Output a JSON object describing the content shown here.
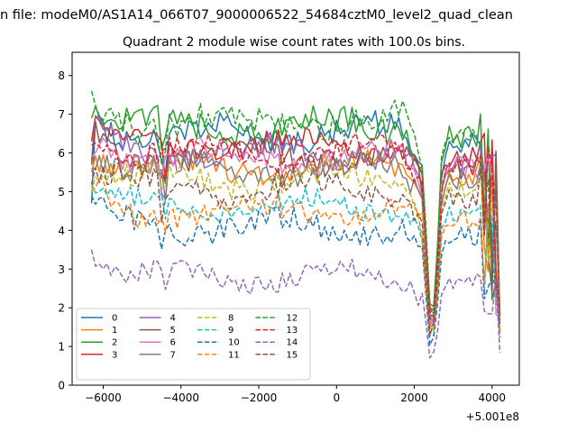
{
  "chart_data": {
    "type": "line",
    "suptitle": "n file: modeM0/AS1A14_066T07_9000006522_54684cztM0_level2_quad_clean",
    "title": "Quadrant 2 module wise count rates with 100.0s bins.",
    "xlabel": "",
    "ylabel": "",
    "offset_label": "+5.001e8",
    "xlim": [
      -6800,
      4700
    ],
    "ylim": [
      0,
      8.6
    ],
    "xticks": [
      -6000,
      -4000,
      -2000,
      0,
      2000,
      4000
    ],
    "xtick_labels": [
      "−6000",
      "−4000",
      "−2000",
      "0",
      "2000",
      "4000"
    ],
    "yticks": [
      0,
      1,
      2,
      3,
      4,
      5,
      6,
      7,
      8
    ],
    "ytick_labels": [
      "0",
      "1",
      "2",
      "3",
      "4",
      "5",
      "6",
      "7",
      "8"
    ],
    "grid": false,
    "legend_position": "lower-left",
    "legend_columns": 4,
    "x_start": -6300,
    "x_step": 100,
    "n_points": 106,
    "series": [
      {
        "name": "0",
        "color": "#1f77b4",
        "dash": "solid",
        "base": 6.5,
        "amp": 0.35,
        "v0": 4.7
      },
      {
        "name": "1",
        "color": "#ff7f0e",
        "dash": "solid",
        "base": 5.6,
        "amp": 0.3,
        "v0": 5.5
      },
      {
        "name": "2",
        "color": "#2ca02c",
        "dash": "solid",
        "base": 6.7,
        "amp": 0.35,
        "v0": 6.9
      },
      {
        "name": "3",
        "color": "#d62728",
        "dash": "solid",
        "base": 6.2,
        "amp": 0.3,
        "v0": 6.3
      },
      {
        "name": "4",
        "color": "#9467bd",
        "dash": "solid",
        "base": 6.0,
        "amp": 0.3,
        "v0": 5.8
      },
      {
        "name": "5",
        "color": "#8c564b",
        "dash": "solid",
        "base": 5.9,
        "amp": 0.3,
        "v0": 5.7
      },
      {
        "name": "6",
        "color": "#e377c2",
        "dash": "solid",
        "base": 5.9,
        "amp": 0.3,
        "v0": 5.9
      },
      {
        "name": "7",
        "color": "#7f7f7f",
        "dash": "solid",
        "base": 5.6,
        "amp": 0.3,
        "v0": 5.6
      },
      {
        "name": "8",
        "color": "#bcbd22",
        "dash": "dashed",
        "base": 5.3,
        "amp": 0.3,
        "v0": 5.0
      },
      {
        "name": "9",
        "color": "#17becf",
        "dash": "dashed",
        "base": 4.6,
        "amp": 0.25,
        "v0": 5.2
      },
      {
        "name": "10",
        "color": "#1f77b4",
        "dash": "dashed",
        "base": 4.1,
        "amp": 0.3,
        "v0": 4.9
      },
      {
        "name": "11",
        "color": "#ff7f0e",
        "dash": "dashed",
        "base": 4.5,
        "amp": 0.3,
        "v0": 5.0
      },
      {
        "name": "12",
        "color": "#2ca02c",
        "dash": "dashed",
        "base": 6.8,
        "amp": 0.35,
        "v0": 7.6
      },
      {
        "name": "13",
        "color": "#d62728",
        "dash": "dashed",
        "base": 6.0,
        "amp": 0.3,
        "v0": 6.2
      },
      {
        "name": "14",
        "color": "#9467bd",
        "dash": "dashed",
        "base": 2.8,
        "amp": 0.25,
        "v0": 3.5
      },
      {
        "name": "15",
        "color": "#8c564b",
        "dash": "dashed",
        "base": 5.1,
        "amp": 0.3,
        "v0": 5.2
      }
    ]
  }
}
